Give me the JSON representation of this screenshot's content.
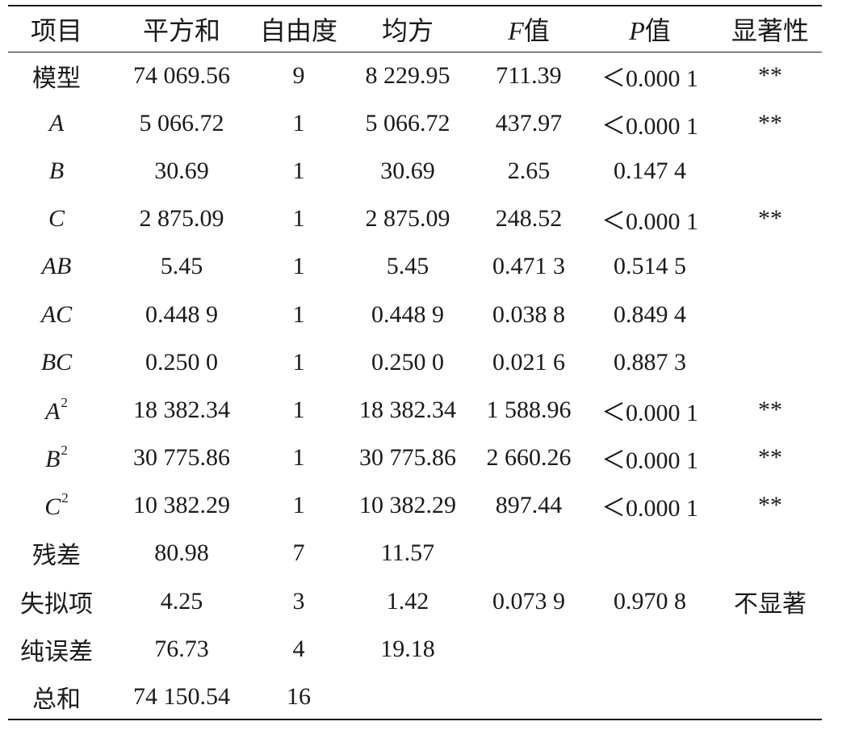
{
  "table": {
    "headers": {
      "item": "项目",
      "sum_of_squares": "平方和",
      "df": "自由度",
      "mean_square": "均方",
      "f_letter": "F",
      "f_suffix": "值",
      "p_letter": "P",
      "p_suffix": "值",
      "significance": "显著性"
    },
    "rows": [
      {
        "item": "模型",
        "item_sup": "",
        "ss": "74 069.56",
        "df": "9",
        "ms": "8 229.95",
        "f": "711.39",
        "p": "＜0.000 1",
        "sig": "**"
      },
      {
        "item": "A",
        "item_sup": "",
        "ss": "5 066.72",
        "df": "1",
        "ms": "5 066.72",
        "f": "437.97",
        "p": "＜0.000 1",
        "sig": "**"
      },
      {
        "item": "B",
        "item_sup": "",
        "ss": "30.69",
        "df": "1",
        "ms": "30.69",
        "f": "2.65",
        "p": "0.147 4",
        "sig": ""
      },
      {
        "item": "C",
        "item_sup": "",
        "ss": "2 875.09",
        "df": "1",
        "ms": "2 875.09",
        "f": "248.52",
        "p": "＜0.000 1",
        "sig": "**"
      },
      {
        "item": "AB",
        "item_sup": "",
        "ss": "5.45",
        "df": "1",
        "ms": "5.45",
        "f": "0.471 3",
        "p": "0.514 5",
        "sig": ""
      },
      {
        "item": "AC",
        "item_sup": "",
        "ss": "0.448 9",
        "df": "1",
        "ms": "0.448 9",
        "f": "0.038 8",
        "p": "0.849 4",
        "sig": ""
      },
      {
        "item": "BC",
        "item_sup": "",
        "ss": "0.250 0",
        "df": "1",
        "ms": "0.250 0",
        "f": "0.021 6",
        "p": "0.887 3",
        "sig": ""
      },
      {
        "item": "A",
        "item_sup": "2",
        "ss": "18 382.34",
        "df": "1",
        "ms": "18 382.34",
        "f": "1 588.96",
        "p": "＜0.000 1",
        "sig": "**"
      },
      {
        "item": "B",
        "item_sup": "2",
        "ss": "30 775.86",
        "df": "1",
        "ms": "30 775.86",
        "f": "2 660.26",
        "p": "＜0.000 1",
        "sig": "**"
      },
      {
        "item": "C",
        "item_sup": "2",
        "ss": "10 382.29",
        "df": "1",
        "ms": "10 382.29",
        "f": "897.44",
        "p": "＜0.000 1",
        "sig": "**"
      },
      {
        "item": "残差",
        "item_sup": "",
        "ss": "80.98",
        "df": "7",
        "ms": "11.57",
        "f": "",
        "p": "",
        "sig": ""
      },
      {
        "item": "失拟项",
        "item_sup": "",
        "ss": "4.25",
        "df": "3",
        "ms": "1.42",
        "f": "0.073 9",
        "p": "0.970 8",
        "sig": "不显著"
      },
      {
        "item": "纯误差",
        "item_sup": "",
        "ss": "76.73",
        "df": "4",
        "ms": "19.18",
        "f": "",
        "p": "",
        "sig": ""
      },
      {
        "item": "总和",
        "item_sup": "",
        "ss": "74 150.54",
        "df": "16",
        "ms": "",
        "f": "",
        "p": "",
        "sig": ""
      }
    ]
  }
}
